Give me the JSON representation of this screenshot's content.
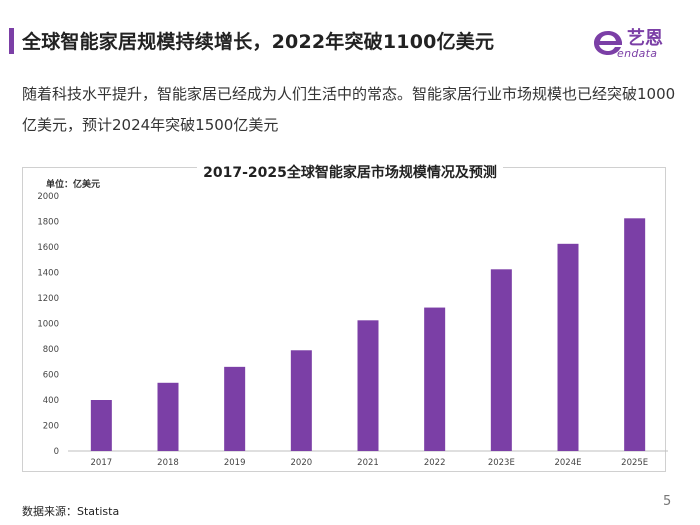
{
  "header": {
    "title": "全球智能家居规模持续增长，2022年突破1100亿美元"
  },
  "logo": {
    "cn": "艺恩",
    "en": "endata"
  },
  "intro": {
    "text": "随着科技水平提升，智能家居已经成为人们生活中的常态。智能家居行业市场规模也已经突破1000亿美元，预计2024年突破1500亿美元"
  },
  "chart_data": {
    "type": "bar",
    "title": "2017-2025全球智能家居市场规模情况及预测",
    "unit_label": "单位：亿美元",
    "categories": [
      "2017",
      "2018",
      "2019",
      "2020",
      "2021",
      "2022",
      "2023E",
      "2024E",
      "2025E"
    ],
    "values": [
      400,
      535,
      660,
      790,
      1025,
      1125,
      1425,
      1625,
      1825
    ],
    "yticks": [
      0,
      200,
      400,
      600,
      800,
      1000,
      1200,
      1400,
      1600,
      1800,
      2000
    ],
    "ylim": [
      0,
      2000
    ],
    "xlabel": "",
    "ylabel": "",
    "grid": false,
    "bar_color": "#7b3fa6"
  },
  "footer": {
    "source": "数据来源：Statista",
    "page_number": "5"
  },
  "colors": {
    "accent": "#7b3fa6"
  }
}
